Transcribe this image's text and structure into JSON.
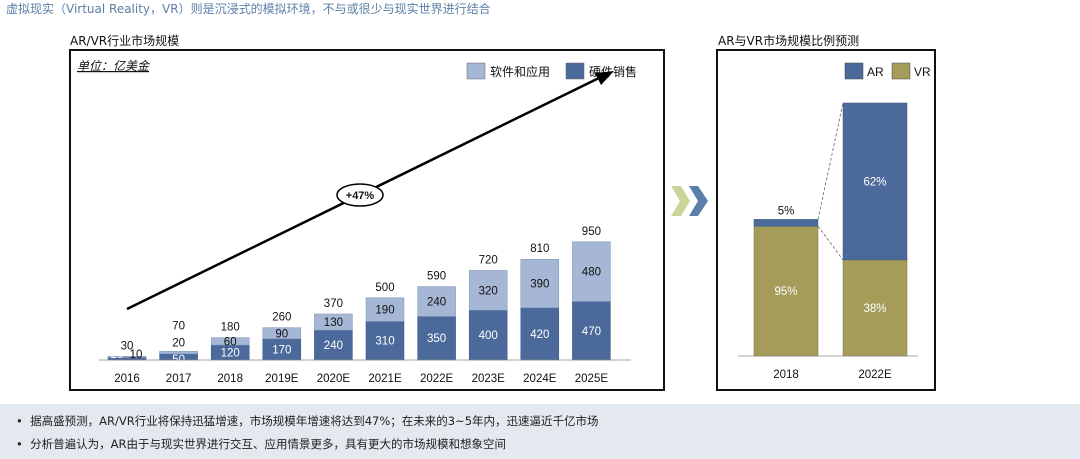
{
  "header_note": "虚拟现实（Virtual Reality，VR）则是沉浸式的模拟环境，不与或很少与现实世界进行结合",
  "left_chart": {
    "title": "AR/VR行业市场规模",
    "unit_label": "单位：亿美金",
    "growth_label": "+47%"
  },
  "right_chart": {
    "title": "AR与VR市场规模比例预测"
  },
  "footer": {
    "bullets": [
      "据高盛预测，AR/VR行业将保持迅猛增速，市场规模年增速将达到47%；在未来的3~5年内，迅速逼近千亿市场",
      "分析普遍认为，AR由于与现实世界进行交互、应用情景更多，具有更大的市场规模和想象空间"
    ]
  },
  "colors": {
    "hardware": "#4b6a9b",
    "software": "#a5b7d5",
    "ar": "#4b6a9b",
    "vr": "#a59c5a",
    "chevron_light": "#cdd49a",
    "chevron_dark": "#5b7fa8"
  },
  "chart_data": [
    {
      "type": "bar",
      "stacked": true,
      "title": "AR/VR行业市场规模",
      "unit": "单位：亿美金",
      "categories": [
        "2016",
        "2017",
        "2018",
        "2019E",
        "2020E",
        "2021E",
        "2022E",
        "2023E",
        "2024E",
        "2025E"
      ],
      "series": [
        {
          "name": "硬件销售",
          "values": [
            20,
            50,
            120,
            170,
            240,
            310,
            350,
            400,
            420,
            470
          ]
        },
        {
          "name": "软件和应用",
          "values": [
            10,
            20,
            60,
            90,
            130,
            190,
            240,
            320,
            390,
            480
          ]
        }
      ],
      "totals": [
        30,
        70,
        180,
        260,
        370,
        500,
        590,
        720,
        810,
        950
      ],
      "legend_position": "top-right",
      "annotation": "+47%"
    },
    {
      "type": "bar",
      "stacked": true,
      "title": "AR与VR市场规模比例预测",
      "categories": [
        "2018",
        "2022E"
      ],
      "series": [
        {
          "name": "AR",
          "values": [
            5,
            62
          ]
        },
        {
          "name": "VR",
          "values": [
            95,
            38
          ]
        }
      ],
      "relative_heights": [
        0.54,
        1.0
      ],
      "legend_position": "top-right"
    }
  ]
}
